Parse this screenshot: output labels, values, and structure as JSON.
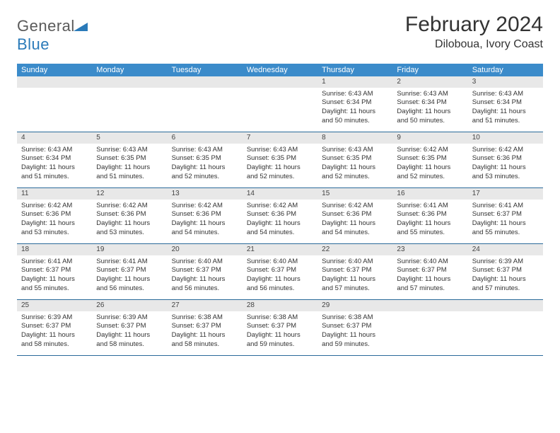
{
  "logo": {
    "text_general": "General",
    "text_blue": "Blue",
    "tri_color": "#2a7ab9"
  },
  "title": "February 2024",
  "location": "Diloboua, Ivory Coast",
  "header_bg": "#3b8bca",
  "header_fg": "#ffffff",
  "daynum_bg": "#e8e8e8",
  "week_border": "#2a6a9a",
  "weekdays": [
    "Sunday",
    "Monday",
    "Tuesday",
    "Wednesday",
    "Thursday",
    "Friday",
    "Saturday"
  ],
  "weeks": [
    [
      {
        "empty": true
      },
      {
        "empty": true
      },
      {
        "empty": true
      },
      {
        "empty": true
      },
      {
        "day": "1",
        "sunrise": "Sunrise: 6:43 AM",
        "sunset": "Sunset: 6:34 PM",
        "daylight1": "Daylight: 11 hours",
        "daylight2": "and 50 minutes."
      },
      {
        "day": "2",
        "sunrise": "Sunrise: 6:43 AM",
        "sunset": "Sunset: 6:34 PM",
        "daylight1": "Daylight: 11 hours",
        "daylight2": "and 50 minutes."
      },
      {
        "day": "3",
        "sunrise": "Sunrise: 6:43 AM",
        "sunset": "Sunset: 6:34 PM",
        "daylight1": "Daylight: 11 hours",
        "daylight2": "and 51 minutes."
      }
    ],
    [
      {
        "day": "4",
        "sunrise": "Sunrise: 6:43 AM",
        "sunset": "Sunset: 6:34 PM",
        "daylight1": "Daylight: 11 hours",
        "daylight2": "and 51 minutes."
      },
      {
        "day": "5",
        "sunrise": "Sunrise: 6:43 AM",
        "sunset": "Sunset: 6:35 PM",
        "daylight1": "Daylight: 11 hours",
        "daylight2": "and 51 minutes."
      },
      {
        "day": "6",
        "sunrise": "Sunrise: 6:43 AM",
        "sunset": "Sunset: 6:35 PM",
        "daylight1": "Daylight: 11 hours",
        "daylight2": "and 52 minutes."
      },
      {
        "day": "7",
        "sunrise": "Sunrise: 6:43 AM",
        "sunset": "Sunset: 6:35 PM",
        "daylight1": "Daylight: 11 hours",
        "daylight2": "and 52 minutes."
      },
      {
        "day": "8",
        "sunrise": "Sunrise: 6:43 AM",
        "sunset": "Sunset: 6:35 PM",
        "daylight1": "Daylight: 11 hours",
        "daylight2": "and 52 minutes."
      },
      {
        "day": "9",
        "sunrise": "Sunrise: 6:42 AM",
        "sunset": "Sunset: 6:35 PM",
        "daylight1": "Daylight: 11 hours",
        "daylight2": "and 52 minutes."
      },
      {
        "day": "10",
        "sunrise": "Sunrise: 6:42 AM",
        "sunset": "Sunset: 6:36 PM",
        "daylight1": "Daylight: 11 hours",
        "daylight2": "and 53 minutes."
      }
    ],
    [
      {
        "day": "11",
        "sunrise": "Sunrise: 6:42 AM",
        "sunset": "Sunset: 6:36 PM",
        "daylight1": "Daylight: 11 hours",
        "daylight2": "and 53 minutes."
      },
      {
        "day": "12",
        "sunrise": "Sunrise: 6:42 AM",
        "sunset": "Sunset: 6:36 PM",
        "daylight1": "Daylight: 11 hours",
        "daylight2": "and 53 minutes."
      },
      {
        "day": "13",
        "sunrise": "Sunrise: 6:42 AM",
        "sunset": "Sunset: 6:36 PM",
        "daylight1": "Daylight: 11 hours",
        "daylight2": "and 54 minutes."
      },
      {
        "day": "14",
        "sunrise": "Sunrise: 6:42 AM",
        "sunset": "Sunset: 6:36 PM",
        "daylight1": "Daylight: 11 hours",
        "daylight2": "and 54 minutes."
      },
      {
        "day": "15",
        "sunrise": "Sunrise: 6:42 AM",
        "sunset": "Sunset: 6:36 PM",
        "daylight1": "Daylight: 11 hours",
        "daylight2": "and 54 minutes."
      },
      {
        "day": "16",
        "sunrise": "Sunrise: 6:41 AM",
        "sunset": "Sunset: 6:36 PM",
        "daylight1": "Daylight: 11 hours",
        "daylight2": "and 55 minutes."
      },
      {
        "day": "17",
        "sunrise": "Sunrise: 6:41 AM",
        "sunset": "Sunset: 6:37 PM",
        "daylight1": "Daylight: 11 hours",
        "daylight2": "and 55 minutes."
      }
    ],
    [
      {
        "day": "18",
        "sunrise": "Sunrise: 6:41 AM",
        "sunset": "Sunset: 6:37 PM",
        "daylight1": "Daylight: 11 hours",
        "daylight2": "and 55 minutes."
      },
      {
        "day": "19",
        "sunrise": "Sunrise: 6:41 AM",
        "sunset": "Sunset: 6:37 PM",
        "daylight1": "Daylight: 11 hours",
        "daylight2": "and 56 minutes."
      },
      {
        "day": "20",
        "sunrise": "Sunrise: 6:40 AM",
        "sunset": "Sunset: 6:37 PM",
        "daylight1": "Daylight: 11 hours",
        "daylight2": "and 56 minutes."
      },
      {
        "day": "21",
        "sunrise": "Sunrise: 6:40 AM",
        "sunset": "Sunset: 6:37 PM",
        "daylight1": "Daylight: 11 hours",
        "daylight2": "and 56 minutes."
      },
      {
        "day": "22",
        "sunrise": "Sunrise: 6:40 AM",
        "sunset": "Sunset: 6:37 PM",
        "daylight1": "Daylight: 11 hours",
        "daylight2": "and 57 minutes."
      },
      {
        "day": "23",
        "sunrise": "Sunrise: 6:40 AM",
        "sunset": "Sunset: 6:37 PM",
        "daylight1": "Daylight: 11 hours",
        "daylight2": "and 57 minutes."
      },
      {
        "day": "24",
        "sunrise": "Sunrise: 6:39 AM",
        "sunset": "Sunset: 6:37 PM",
        "daylight1": "Daylight: 11 hours",
        "daylight2": "and 57 minutes."
      }
    ],
    [
      {
        "day": "25",
        "sunrise": "Sunrise: 6:39 AM",
        "sunset": "Sunset: 6:37 PM",
        "daylight1": "Daylight: 11 hours",
        "daylight2": "and 58 minutes."
      },
      {
        "day": "26",
        "sunrise": "Sunrise: 6:39 AM",
        "sunset": "Sunset: 6:37 PM",
        "daylight1": "Daylight: 11 hours",
        "daylight2": "and 58 minutes."
      },
      {
        "day": "27",
        "sunrise": "Sunrise: 6:38 AM",
        "sunset": "Sunset: 6:37 PM",
        "daylight1": "Daylight: 11 hours",
        "daylight2": "and 58 minutes."
      },
      {
        "day": "28",
        "sunrise": "Sunrise: 6:38 AM",
        "sunset": "Sunset: 6:37 PM",
        "daylight1": "Daylight: 11 hours",
        "daylight2": "and 59 minutes."
      },
      {
        "day": "29",
        "sunrise": "Sunrise: 6:38 AM",
        "sunset": "Sunset: 6:37 PM",
        "daylight1": "Daylight: 11 hours",
        "daylight2": "and 59 minutes."
      },
      {
        "empty": true
      },
      {
        "empty": true
      }
    ]
  ]
}
